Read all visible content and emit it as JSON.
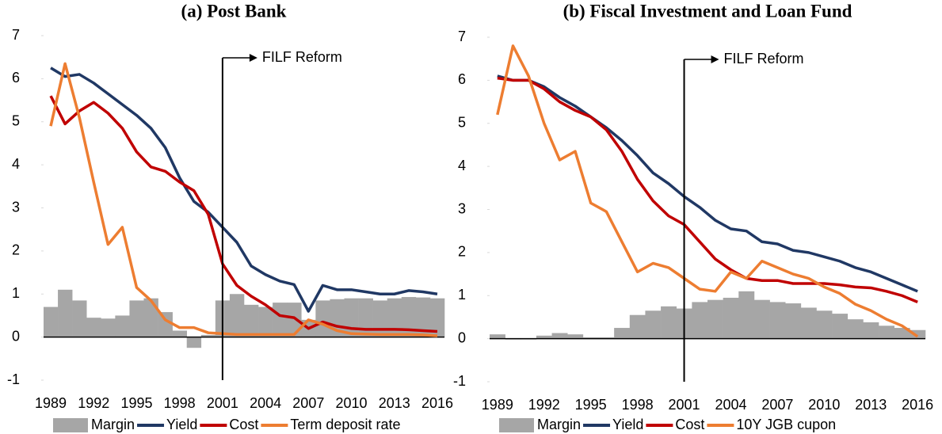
{
  "chart_data": [
    {
      "type": "combo",
      "title": "(a) Post Bank",
      "categories": [
        "1989",
        null,
        null,
        "1992",
        null,
        null,
        "1995",
        null,
        null,
        "1998",
        null,
        null,
        "2001",
        null,
        null,
        "2004",
        null,
        null,
        "2007",
        null,
        null,
        "2010",
        null,
        null,
        "2013",
        null,
        null,
        "2016"
      ],
      "ylim": [
        -1,
        7
      ],
      "yticks": [
        -1,
        0,
        1,
        2,
        3,
        4,
        5,
        6,
        7
      ],
      "annotation": {
        "text": "FILF Reform",
        "x": 2001
      },
      "series": [
        {
          "name": "Margin",
          "type": "bar",
          "color": "#a6a6a6",
          "values": [
            0.7,
            1.1,
            0.85,
            0.45,
            0.43,
            0.5,
            0.85,
            0.9,
            0.58,
            0.15,
            -0.25,
            0.05,
            0.85,
            1.0,
            0.75,
            0.7,
            0.8,
            0.8,
            0.4,
            0.85,
            0.88,
            0.9,
            0.9,
            0.85,
            0.9,
            0.93,
            0.92,
            0.9
          ]
        },
        {
          "name": "Yield",
          "type": "line",
          "color": "#203864",
          "values": [
            6.25,
            6.05,
            6.1,
            5.9,
            5.65,
            5.4,
            5.15,
            4.85,
            4.4,
            3.7,
            3.15,
            2.9,
            2.55,
            2.2,
            1.65,
            1.45,
            1.3,
            1.22,
            0.6,
            1.2,
            1.1,
            1.1,
            1.05,
            1.0,
            1.0,
            1.08,
            1.05,
            1.0
          ]
        },
        {
          "name": "Cost",
          "type": "line",
          "color": "#c00000",
          "values": [
            5.6,
            4.95,
            5.25,
            5.45,
            5.2,
            4.85,
            4.3,
            3.95,
            3.85,
            3.6,
            3.4,
            2.85,
            1.7,
            1.2,
            0.95,
            0.75,
            0.5,
            0.45,
            0.2,
            0.35,
            0.25,
            0.2,
            0.18,
            0.18,
            0.18,
            0.17,
            0.15,
            0.13
          ]
        },
        {
          "name": "Term deposit rate",
          "type": "line",
          "color": "#ed7d31",
          "values": [
            4.9,
            6.35,
            5.1,
            3.6,
            2.15,
            2.55,
            1.15,
            0.85,
            0.4,
            0.22,
            0.22,
            0.1,
            0.08,
            0.06,
            0.06,
            0.06,
            0.06,
            0.06,
            0.4,
            0.3,
            0.15,
            0.08,
            0.07,
            0.06,
            0.06,
            0.06,
            0.05,
            0.03
          ]
        }
      ]
    },
    {
      "type": "combo",
      "title": "(b) Fiscal Investment and Loan Fund",
      "categories": [
        "1989",
        null,
        null,
        "1992",
        null,
        null,
        "1995",
        null,
        null,
        "1998",
        null,
        null,
        "2001",
        null,
        null,
        "2004",
        null,
        null,
        "2007",
        null,
        null,
        "2010",
        null,
        null,
        "2013",
        null,
        null,
        "2016"
      ],
      "ylim": [
        -1,
        7
      ],
      "yticks": [
        -1,
        0,
        1,
        2,
        3,
        4,
        5,
        6,
        7
      ],
      "annotation": {
        "text": "FILF Reform",
        "x": 2001
      },
      "series": [
        {
          "name": "Margin",
          "type": "bar",
          "color": "#a6a6a6",
          "values": [
            0.1,
            -0.02,
            -0.02,
            0.07,
            0.13,
            0.1,
            0.03,
            0.03,
            0.25,
            0.55,
            0.65,
            0.75,
            0.7,
            0.85,
            0.9,
            0.95,
            1.1,
            0.9,
            0.85,
            0.82,
            0.72,
            0.65,
            0.58,
            0.45,
            0.38,
            0.3,
            0.25,
            0.2
          ]
        },
        {
          "name": "Yield",
          "type": "line",
          "color": "#203864",
          "values": [
            6.1,
            6.0,
            6.0,
            5.85,
            5.6,
            5.4,
            5.15,
            4.9,
            4.6,
            4.25,
            3.85,
            3.6,
            3.3,
            3.05,
            2.75,
            2.55,
            2.5,
            2.25,
            2.2,
            2.05,
            2.0,
            1.9,
            1.8,
            1.65,
            1.55,
            1.4,
            1.25,
            1.1
          ]
        },
        {
          "name": "Cost",
          "type": "line",
          "color": "#c00000",
          "values": [
            6.05,
            6.0,
            6.0,
            5.8,
            5.5,
            5.3,
            5.15,
            4.85,
            4.35,
            3.7,
            3.2,
            2.85,
            2.65,
            2.25,
            1.85,
            1.6,
            1.4,
            1.35,
            1.35,
            1.28,
            1.28,
            1.28,
            1.25,
            1.2,
            1.18,
            1.1,
            1.0,
            0.85
          ]
        },
        {
          "name": "10Y JGB cupon",
          "type": "line",
          "color": "#ed7d31",
          "values": [
            5.2,
            6.8,
            6.1,
            5.0,
            4.15,
            4.35,
            3.15,
            2.95,
            2.25,
            1.55,
            1.75,
            1.65,
            1.4,
            1.15,
            1.1,
            1.55,
            1.4,
            1.8,
            1.65,
            1.5,
            1.4,
            1.2,
            1.05,
            0.8,
            0.65,
            0.45,
            0.3,
            0.05
          ]
        }
      ]
    }
  ]
}
